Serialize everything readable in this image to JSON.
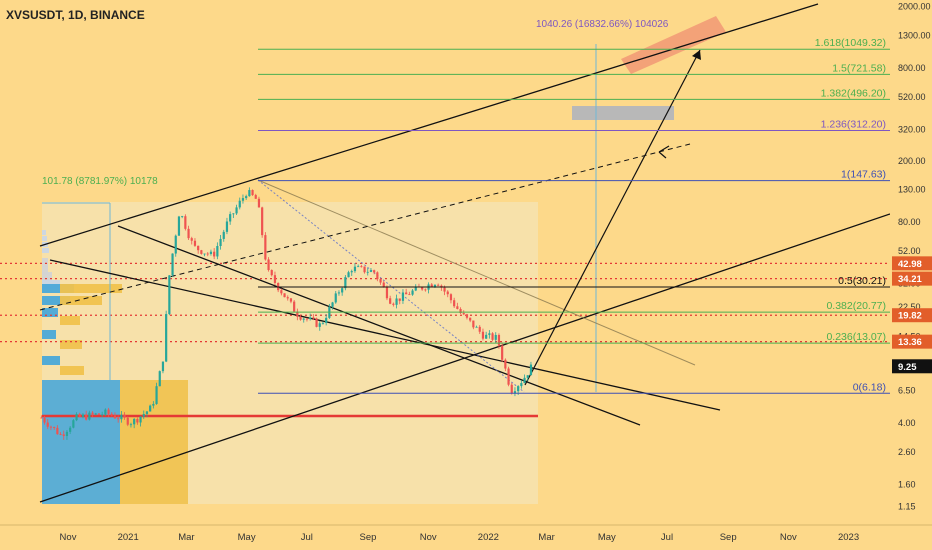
{
  "title": "XVSUSDT, 1D, BINANCE",
  "colors": {
    "background": "#fdd98a",
    "candle_up": "#26a69a",
    "candle_down": "#ef5350",
    "fib_green": "#4caf50",
    "fib_blue": "#3f51b5",
    "fib_purple": "#7e57c2",
    "channel": "#111111",
    "support_red": "#e53935",
    "target_box": "#f29b76",
    "grey_box": "#b8b8b8",
    "range_box": "#f3e7c4",
    "measure_line": "#6fb7d6",
    "dotted_level": "#e53935",
    "vp_blue": "#4aa8d8",
    "vp_yellow": "#f0c24d"
  },
  "chart_data": {
    "type": "candlestick",
    "title": "XVSUSDT, 1D, BINANCE",
    "y_scale": "log",
    "y_ticks": [
      "2000.00",
      "1300.00",
      "800.00",
      "520.00",
      "320.00",
      "200.00",
      "130.00",
      "80.00",
      "52.00",
      "32.00",
      "22.50",
      "14.50",
      "9.25",
      "6.50",
      "4.00",
      "2.60",
      "1.60",
      "1.15"
    ],
    "y_tick_values": [
      2000,
      1300,
      800,
      520,
      320,
      200,
      130,
      80,
      52,
      32,
      22.5,
      14.5,
      9.25,
      6.5,
      4.0,
      2.6,
      1.6,
      1.15
    ],
    "x_ticks": [
      "Nov",
      "2021",
      "Mar",
      "May",
      "Jul",
      "Sep",
      "Nov",
      "2022",
      "Mar",
      "May",
      "Jul",
      "Sep",
      "Nov",
      "2023"
    ],
    "x_tick_dates": [
      "2020-11-01",
      "2021-01-01",
      "2021-03-01",
      "2021-05-01",
      "2021-07-01",
      "2021-09-01",
      "2021-11-01",
      "2022-01-01",
      "2022-03-01",
      "2022-05-01",
      "2022-07-01",
      "2022-09-01",
      "2022-11-01",
      "2023-01-01"
    ],
    "price_path": [
      {
        "date": "2020-10-05",
        "price": 4.3
      },
      {
        "date": "2020-10-25",
        "price": 3.3
      },
      {
        "date": "2020-11-10",
        "price": 4.3
      },
      {
        "date": "2020-12-10",
        "price": 4.6
      },
      {
        "date": "2021-01-05",
        "price": 4.0
      },
      {
        "date": "2021-01-25",
        "price": 5.0
      },
      {
        "date": "2021-02-05",
        "price": 10.0
      },
      {
        "date": "2021-02-12",
        "price": 38.0
      },
      {
        "date": "2021-02-22",
        "price": 95.0
      },
      {
        "date": "2021-03-08",
        "price": 55.0
      },
      {
        "date": "2021-03-28",
        "price": 48.0
      },
      {
        "date": "2021-04-12",
        "price": 80.0
      },
      {
        "date": "2021-05-01",
        "price": 125.0
      },
      {
        "date": "2021-05-12",
        "price": 110.0
      },
      {
        "date": "2021-05-22",
        "price": 38.0
      },
      {
        "date": "2021-06-22",
        "price": 20.0
      },
      {
        "date": "2021-07-15",
        "price": 17.0
      },
      {
        "date": "2021-08-15",
        "price": 40.0
      },
      {
        "date": "2021-09-07",
        "price": 38.0
      },
      {
        "date": "2021-09-25",
        "price": 24.0
      },
      {
        "date": "2021-10-15",
        "price": 28.0
      },
      {
        "date": "2021-11-10",
        "price": 33.0
      },
      {
        "date": "2021-12-05",
        "price": 20.0
      },
      {
        "date": "2021-12-28",
        "price": 14.5
      },
      {
        "date": "2022-01-10",
        "price": 14.0
      },
      {
        "date": "2022-01-24",
        "price": 6.4
      },
      {
        "date": "2022-02-05",
        "price": 7.6
      },
      {
        "date": "2022-02-14",
        "price": 9.25
      }
    ],
    "last_price": "9.25",
    "fib_levels": [
      {
        "label": "1.618(1049.32)",
        "value": 1049.32,
        "color": "#4caf50"
      },
      {
        "label": "1.5(721.58)",
        "value": 721.58,
        "color": "#4caf50"
      },
      {
        "label": "1.382(496.20)",
        "value": 496.2,
        "color": "#4caf50"
      },
      {
        "label": "1.236(312.20)",
        "value": 312.2,
        "color": "#7e57c2"
      },
      {
        "label": "1(147.63)",
        "value": 147.63,
        "color": "#3f51b5"
      },
      {
        "label": "0.5(30.21)",
        "value": 30.21,
        "color": "#111111"
      },
      {
        "label": "0.382(20.77)",
        "value": 20.77,
        "color": "#4caf50"
      },
      {
        "label": "0.236(13.07)",
        "value": 13.07,
        "color": "#4caf50"
      },
      {
        "label": "0(6.18)",
        "value": 6.18,
        "color": "#3f51b5"
      }
    ],
    "dotted_levels": [
      {
        "label": "42.98",
        "value": 42.98
      },
      {
        "label": "34.21",
        "value": 34.21
      },
      {
        "label": "19.82",
        "value": 19.82
      },
      {
        "label": "13.36",
        "value": 13.36
      }
    ],
    "measure_annotations": [
      {
        "text": "101.78 (8781.97%) 10178",
        "color": "#4caf50"
      },
      {
        "text": "1040.26 (16832.66%) 104026",
        "color": "#7e57c2"
      }
    ]
  }
}
